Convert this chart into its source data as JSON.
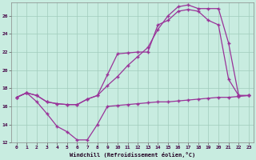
{
  "bg_color": "#c8ece0",
  "grid_color": "#a0ccbc",
  "line_color": "#993399",
  "xlabel": "Windchill (Refroidissement éolien,°C)",
  "ylim": [
    12,
    27.5
  ],
  "xlim": [
    -0.5,
    23.5
  ],
  "yticks": [
    12,
    14,
    16,
    18,
    20,
    22,
    24,
    26
  ],
  "xticks": [
    0,
    1,
    2,
    3,
    4,
    5,
    6,
    7,
    8,
    9,
    10,
    11,
    12,
    13,
    14,
    15,
    16,
    17,
    18,
    19,
    20,
    21,
    22,
    23
  ],
  "line1": {
    "x": [
      0,
      1,
      2,
      3,
      4,
      5,
      6,
      7,
      8,
      9,
      10,
      11,
      12,
      13,
      14,
      15,
      16,
      17,
      18,
      19,
      20,
      21,
      22,
      23
    ],
    "y": [
      17.0,
      17.5,
      16.5,
      15.2,
      13.8,
      13.2,
      12.3,
      12.3,
      14.0,
      16.0,
      16.1,
      16.2,
      16.3,
      16.4,
      16.5,
      16.5,
      16.6,
      16.7,
      16.8,
      16.9,
      17.0,
      17.0,
      17.1,
      17.2
    ]
  },
  "line2": {
    "x": [
      0,
      1,
      2,
      3,
      4,
      5,
      6,
      7,
      8,
      9,
      10,
      11,
      12,
      13,
      14,
      15,
      16,
      17,
      18,
      19,
      20,
      21,
      22,
      23
    ],
    "y": [
      17.0,
      17.5,
      17.2,
      16.5,
      16.3,
      16.2,
      16.2,
      16.8,
      17.2,
      19.5,
      21.8,
      21.9,
      22.0,
      22.0,
      25.0,
      25.5,
      26.5,
      26.7,
      26.5,
      25.5,
      25.0,
      19.0,
      17.2,
      17.2
    ]
  },
  "line3": {
    "x": [
      0,
      1,
      2,
      3,
      4,
      5,
      6,
      7,
      8,
      9,
      10,
      11,
      12,
      13,
      14,
      15,
      16,
      17,
      18,
      19,
      20,
      21,
      22,
      23
    ],
    "y": [
      17.0,
      17.5,
      17.2,
      16.5,
      16.3,
      16.2,
      16.2,
      16.8,
      17.2,
      18.3,
      19.3,
      20.5,
      21.5,
      22.5,
      24.5,
      26.0,
      27.0,
      27.2,
      26.8,
      26.8,
      26.8,
      23.0,
      17.2,
      17.2
    ]
  }
}
